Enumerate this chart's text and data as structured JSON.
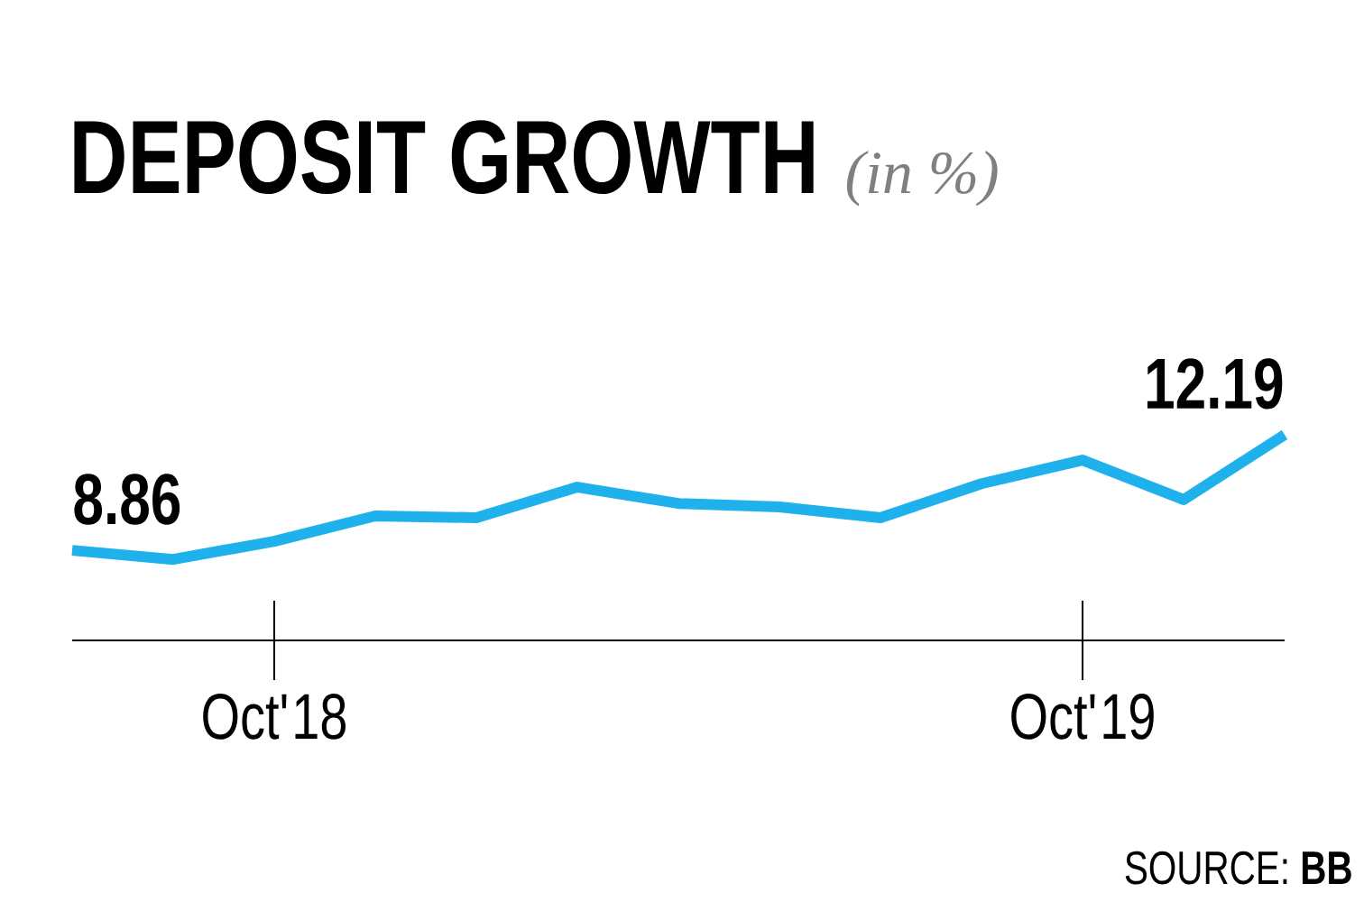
{
  "chart_data": {
    "type": "line",
    "title": "DEPOSIT GROWTH",
    "subtitle": "(in %)",
    "categories": [
      null,
      null,
      "Oct'18",
      null,
      null,
      null,
      null,
      null,
      null,
      null,
      "Oct'19",
      null,
      null
    ],
    "values": [
      8.86,
      8.6,
      9.12,
      9.85,
      9.8,
      10.68,
      10.21,
      10.11,
      9.8,
      10.78,
      11.46,
      10.32,
      12.19
    ],
    "value_labels": [
      "8.86",
      null,
      null,
      null,
      null,
      null,
      null,
      null,
      null,
      null,
      null,
      null,
      "12.19"
    ],
    "color": "#1fb1ec",
    "marker": "none",
    "line_style": "solid",
    "annotations": [
      "SOURCE: **BB**"
    ]
  }
}
